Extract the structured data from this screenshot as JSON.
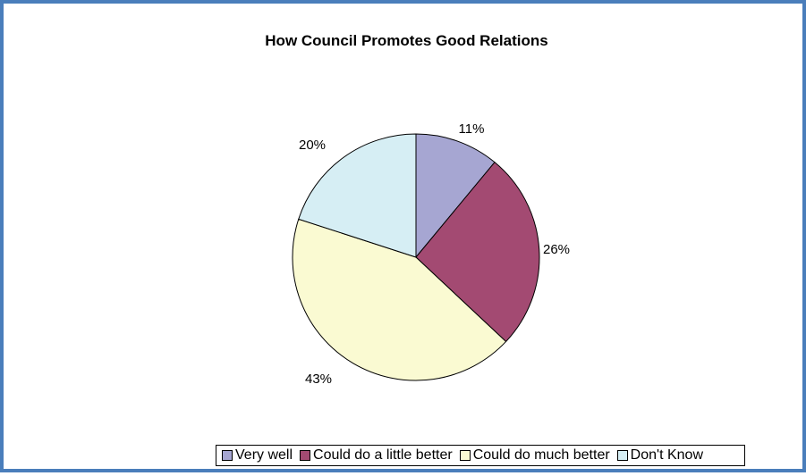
{
  "chart_data": {
    "type": "pie",
    "title": "How Council Promotes Good Relations",
    "categories": [
      "Very well",
      "Could do a little better",
      "Could do much better",
      "Don't Know"
    ],
    "values": [
      11,
      26,
      43,
      20
    ],
    "labels": [
      "11%",
      "26%",
      "43%",
      "20%"
    ],
    "colors": [
      "#a6a6d2",
      "#a34a72",
      "#fafad2",
      "#d6eef4"
    ],
    "legend_placement": "bottom"
  }
}
